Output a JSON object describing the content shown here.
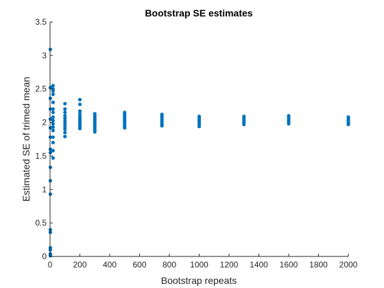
{
  "chart_data": {
    "type": "scatter",
    "title": "Bootstrap SE estimates",
    "xlabel": "Bootstrap repeats",
    "ylabel": "Estimated SE of trimed mean",
    "xlim": [
      0,
      2000
    ],
    "ylim": [
      0,
      3.5
    ],
    "xticks": [
      0,
      200,
      400,
      600,
      800,
      1000,
      1200,
      1400,
      1600,
      1800,
      2000
    ],
    "yticks": [
      0,
      0.5,
      1,
      1.5,
      2,
      2.5,
      3,
      3.5
    ],
    "xtick_labels": [
      "0",
      "200",
      "400",
      "600",
      "800",
      "1000",
      "1200",
      "1400",
      "1600",
      "1800",
      "2000"
    ],
    "ytick_labels": [
      "0",
      "0.5",
      "1",
      "1.5",
      "2",
      "2.5",
      "3",
      "3.5"
    ],
    "grid": false,
    "marker_color": "#0072BD",
    "series": [
      {
        "points": [
          [
            2,
            3.09
          ],
          [
            2,
            2.52
          ],
          [
            2,
            2.36
          ],
          [
            2,
            2.2
          ],
          [
            2,
            2.05
          ],
          [
            2,
            1.92
          ],
          [
            2,
            1.78
          ],
          [
            2,
            1.6
          ],
          [
            2,
            1.55
          ],
          [
            2,
            1.33
          ],
          [
            2,
            1.13
          ],
          [
            2,
            0.93
          ],
          [
            2,
            0.4
          ],
          [
            2,
            0.36
          ],
          [
            2,
            0.13
          ],
          [
            2,
            0.1
          ],
          [
            2,
            0.04
          ],
          [
            2,
            0.02
          ],
          [
            2,
            0.01
          ],
          [
            20,
            2.55
          ],
          [
            20,
            2.5
          ],
          [
            20,
            2.47
          ],
          [
            20,
            2.42
          ],
          [
            20,
            2.3
          ],
          [
            20,
            2.2
          ],
          [
            20,
            2.15
          ],
          [
            20,
            2.08
          ],
          [
            20,
            2.03
          ],
          [
            20,
            1.98
          ],
          [
            20,
            1.93
          ],
          [
            20,
            1.88
          ],
          [
            20,
            1.78
          ],
          [
            20,
            1.7
          ],
          [
            20,
            1.58
          ],
          [
            20,
            1.47
          ],
          [
            100,
            2.28
          ],
          [
            100,
            2.2
          ],
          [
            100,
            2.15
          ],
          [
            100,
            2.1
          ],
          [
            100,
            2.06
          ],
          [
            100,
            2.02
          ],
          [
            100,
            1.98
          ],
          [
            100,
            1.94
          ],
          [
            100,
            1.9
          ],
          [
            100,
            1.85
          ],
          [
            100,
            1.79
          ],
          [
            200,
            2.34
          ],
          [
            200,
            2.27
          ],
          [
            200,
            2.17
          ],
          [
            200,
            2.13
          ],
          [
            200,
            2.09
          ],
          [
            200,
            2.06
          ],
          [
            200,
            2.03
          ],
          [
            200,
            2.0
          ],
          [
            200,
            1.97
          ],
          [
            200,
            1.94
          ],
          [
            200,
            1.91
          ],
          [
            300,
            2.13
          ],
          [
            300,
            2.1
          ],
          [
            300,
            2.07
          ],
          [
            300,
            2.04
          ],
          [
            300,
            2.01
          ],
          [
            300,
            1.98
          ],
          [
            300,
            1.95
          ],
          [
            300,
            1.92
          ],
          [
            300,
            1.89
          ],
          [
            300,
            1.86
          ],
          [
            500,
            2.15
          ],
          [
            500,
            2.12
          ],
          [
            500,
            2.09
          ],
          [
            500,
            2.06
          ],
          [
            500,
            2.03
          ],
          [
            500,
            2.0
          ],
          [
            500,
            1.97
          ],
          [
            500,
            1.94
          ],
          [
            500,
            1.92
          ],
          [
            750,
            2.12
          ],
          [
            750,
            2.09
          ],
          [
            750,
            2.06
          ],
          [
            750,
            2.03
          ],
          [
            750,
            2.0
          ],
          [
            750,
            1.97
          ],
          [
            750,
            1.95
          ],
          [
            1000,
            2.09
          ],
          [
            1000,
            2.06
          ],
          [
            1000,
            2.03
          ],
          [
            1000,
            2.0
          ],
          [
            1000,
            1.97
          ],
          [
            1000,
            1.94
          ],
          [
            1300,
            2.09
          ],
          [
            1300,
            2.06
          ],
          [
            1300,
            2.03
          ],
          [
            1300,
            2.0
          ],
          [
            1300,
            1.97
          ],
          [
            1600,
            2.1
          ],
          [
            1600,
            2.07
          ],
          [
            1600,
            2.04
          ],
          [
            1600,
            2.01
          ],
          [
            1600,
            1.98
          ],
          [
            2000,
            2.08
          ],
          [
            2000,
            2.05
          ],
          [
            2000,
            2.02
          ],
          [
            2000,
            1.99
          ],
          [
            2000,
            1.97
          ]
        ]
      }
    ]
  }
}
